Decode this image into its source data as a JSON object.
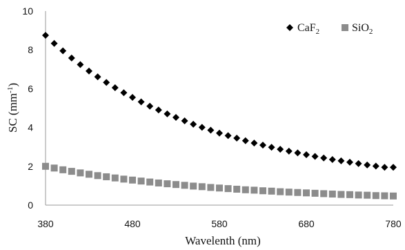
{
  "chart_data": {
    "type": "scatter",
    "title": "",
    "xlabel": "Wavelenth (nm)",
    "ylabel_main": "SC (mm",
    "ylabel_sup": "-1",
    "ylabel_close": ")",
    "xlim": [
      380,
      780
    ],
    "ylim": [
      0,
      10
    ],
    "xticks": [
      380,
      480,
      580,
      680,
      780
    ],
    "yticks": [
      0,
      2,
      4,
      6,
      8,
      10
    ],
    "grid": false,
    "legend_position": "top-right",
    "series": [
      {
        "name_main": "CaF",
        "name_sub": "2",
        "marker": "diamond",
        "color": "#000000",
        "points": [
          [
            380,
            8.75
          ],
          [
            390,
            8.33
          ],
          [
            400,
            7.95
          ],
          [
            410,
            7.58
          ],
          [
            420,
            7.24
          ],
          [
            430,
            6.91
          ],
          [
            440,
            6.61
          ],
          [
            450,
            6.32
          ],
          [
            460,
            6.05
          ],
          [
            470,
            5.79
          ],
          [
            480,
            5.55
          ],
          [
            490,
            5.32
          ],
          [
            500,
            5.1
          ],
          [
            510,
            4.9
          ],
          [
            520,
            4.7
          ],
          [
            530,
            4.52
          ],
          [
            540,
            4.34
          ],
          [
            550,
            4.17
          ],
          [
            560,
            4.01
          ],
          [
            570,
            3.86
          ],
          [
            580,
            3.71
          ],
          [
            590,
            3.58
          ],
          [
            600,
            3.45
          ],
          [
            610,
            3.32
          ],
          [
            620,
            3.2
          ],
          [
            630,
            3.09
          ],
          [
            640,
            2.98
          ],
          [
            650,
            2.88
          ],
          [
            660,
            2.78
          ],
          [
            670,
            2.69
          ],
          [
            680,
            2.6
          ],
          [
            690,
            2.51
          ],
          [
            700,
            2.43
          ],
          [
            710,
            2.35
          ],
          [
            720,
            2.28
          ],
          [
            730,
            2.21
          ],
          [
            740,
            2.14
          ],
          [
            750,
            2.07
          ],
          [
            760,
            2.01
          ],
          [
            770,
            1.95
          ],
          [
            780,
            1.95
          ]
        ]
      },
      {
        "name_main": "SiO",
        "name_sub": "2",
        "marker": "square",
        "color": "#8c8c8c",
        "points": [
          [
            380,
            2.0
          ],
          [
            390,
            1.91
          ],
          [
            400,
            1.82
          ],
          [
            410,
            1.74
          ],
          [
            420,
            1.66
          ],
          [
            430,
            1.59
          ],
          [
            440,
            1.52
          ],
          [
            450,
            1.46
          ],
          [
            460,
            1.4
          ],
          [
            470,
            1.34
          ],
          [
            480,
            1.29
          ],
          [
            490,
            1.24
          ],
          [
            500,
            1.19
          ],
          [
            510,
            1.14
          ],
          [
            520,
            1.1
          ],
          [
            530,
            1.06
          ],
          [
            540,
            1.02
          ],
          [
            550,
            0.98
          ],
          [
            560,
            0.95
          ],
          [
            570,
            0.91
          ],
          [
            580,
            0.88
          ],
          [
            590,
            0.85
          ],
          [
            600,
            0.82
          ],
          [
            610,
            0.79
          ],
          [
            620,
            0.77
          ],
          [
            630,
            0.74
          ],
          [
            640,
            0.72
          ],
          [
            650,
            0.69
          ],
          [
            660,
            0.67
          ],
          [
            670,
            0.65
          ],
          [
            680,
            0.63
          ],
          [
            690,
            0.61
          ],
          [
            700,
            0.59
          ],
          [
            710,
            0.57
          ],
          [
            720,
            0.55
          ],
          [
            730,
            0.54
          ],
          [
            740,
            0.52
          ],
          [
            750,
            0.51
          ],
          [
            760,
            0.49
          ],
          [
            770,
            0.48
          ],
          [
            780,
            0.47
          ]
        ]
      }
    ]
  }
}
